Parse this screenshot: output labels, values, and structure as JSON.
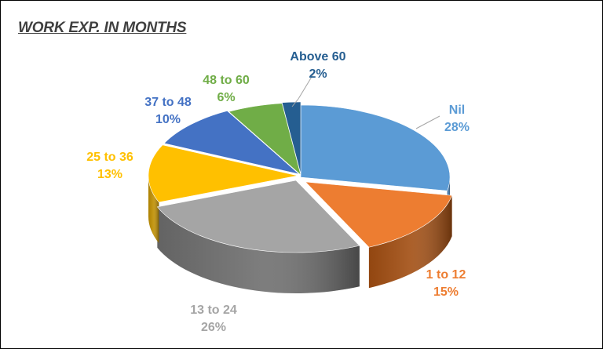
{
  "chart_data": {
    "type": "pie",
    "title": "WORK EXP. IN MONTHS",
    "slices": [
      {
        "label": "Nil",
        "value": 28,
        "pct_text": "28%",
        "color": "#5B9BD5",
        "dark": "#3F74A8"
      },
      {
        "label": "1 to 12",
        "value": 15,
        "pct_text": "15%",
        "color": "#ED7D31",
        "dark": "#A24E12"
      },
      {
        "label": "13 to 24",
        "value": 26,
        "pct_text": "26%",
        "color": "#A5A5A5",
        "dark": "#6E6E6E"
      },
      {
        "label": "25 to 36",
        "value": 13,
        "pct_text": "13%",
        "color": "#FFC000",
        "dark": "#C08F00"
      },
      {
        "label": "37 to 48",
        "value": 10,
        "pct_text": "10%",
        "color": "#4472C4",
        "dark": "#2E4F8A"
      },
      {
        "label": "48 to 60",
        "value": 6,
        "pct_text": "6%",
        "color": "#70AD47",
        "dark": "#4C7A2E"
      },
      {
        "label": "Above 60",
        "value": 2,
        "pct_text": "2%",
        "color": "#255E91",
        "dark": "#173D5F"
      }
    ]
  }
}
